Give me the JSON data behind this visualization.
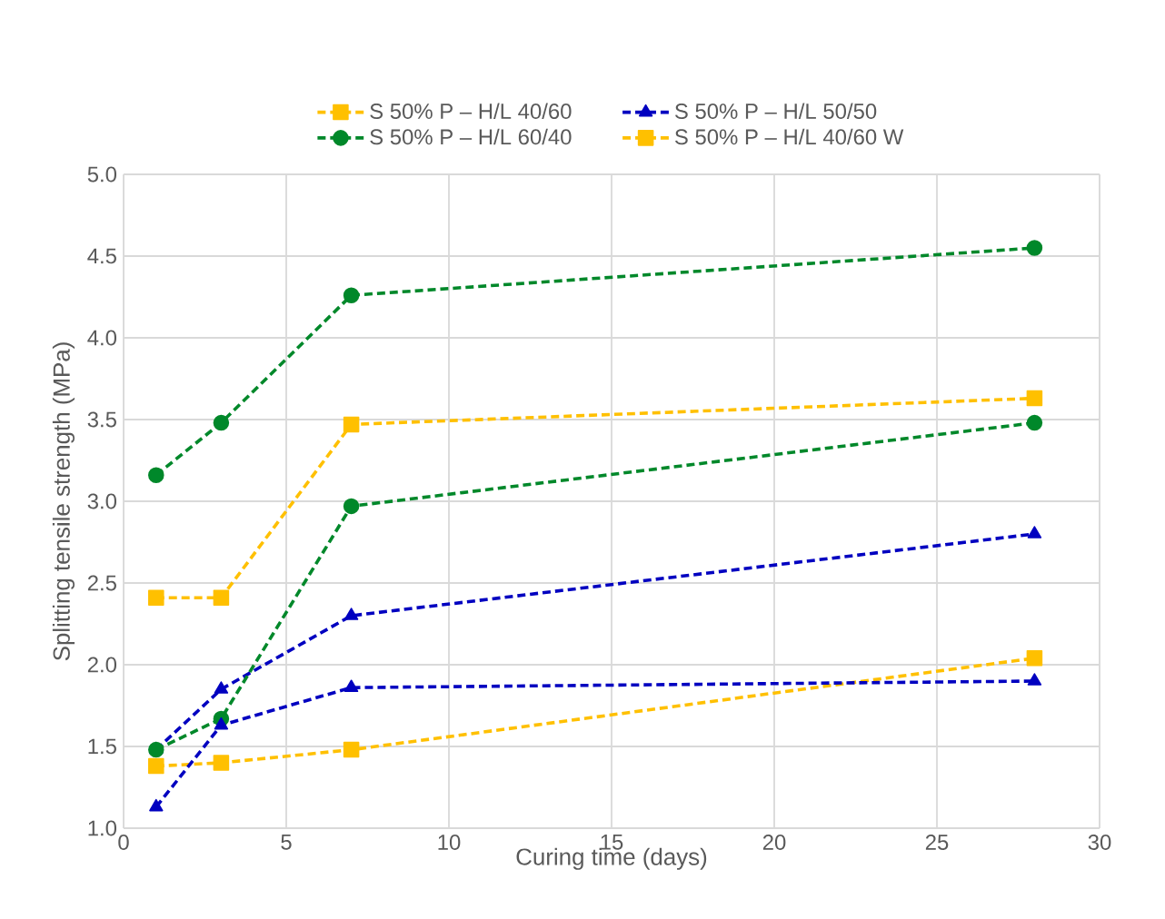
{
  "chart_data": {
    "type": "line",
    "xlabel": "Curing time (days)",
    "ylabel": "Splitting tensile  strength (MPa)",
    "xlim": [
      0,
      30
    ],
    "xticks": [
      0,
      5,
      10,
      15,
      20,
      25,
      30
    ],
    "ylim": [
      1.0,
      5.0
    ],
    "yticks": [
      {
        "value": 1.0,
        "label": "1.0"
      },
      {
        "value": 1.5,
        "label": "1.5"
      },
      {
        "value": 2.0,
        "label": "2.0"
      },
      {
        "value": 2.5,
        "label": "2.5"
      },
      {
        "value": 3.0,
        "label": "3.0"
      },
      {
        "value": 3.5,
        "label": "3.5"
      },
      {
        "value": 4.0,
        "label": "4.0"
      },
      {
        "value": 4.5,
        "label": "4.5"
      },
      {
        "value": 5.0,
        "label": "5.0"
      }
    ],
    "grid": true,
    "legend": "top",
    "line_style": "dashed",
    "x": [
      1,
      3,
      7,
      28
    ],
    "series": [
      {
        "name": "S 50% P – H/L 40/60",
        "color": "#ffc000",
        "marker": "square",
        "values": [
          2.41,
          2.41,
          3.47,
          3.63
        ]
      },
      {
        "name": "S 50% P – H/L 50/50",
        "color": "#0000c0",
        "marker": "triangle",
        "values": [
          1.48,
          1.85,
          2.3,
          2.8
        ]
      },
      {
        "name": "S 50% P – H/L 60/40",
        "color": "#00882a",
        "marker": "circle",
        "values": [
          3.16,
          3.48,
          4.26,
          4.55
        ]
      },
      {
        "name": "S 50% P – H/L 40/60 W",
        "color": "#ffc000",
        "marker": "square",
        "values": [
          1.38,
          1.4,
          1.48,
          2.04
        ]
      },
      {
        "color": "#00882a",
        "marker": "circle",
        "values": [
          1.48,
          1.67,
          2.97,
          3.48
        ]
      },
      {
        "color": "#0000c0",
        "marker": "triangle",
        "values": [
          1.13,
          1.63,
          1.86,
          1.9
        ]
      }
    ]
  }
}
